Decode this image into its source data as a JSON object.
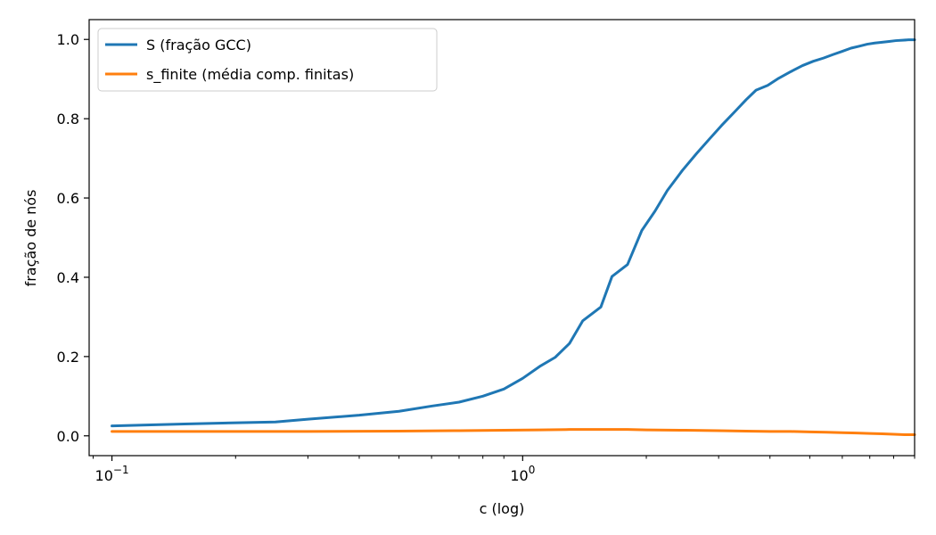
{
  "chart_data": {
    "type": "line",
    "xscale": "log",
    "xlabel": "c (log)",
    "ylabel": "fração de nós",
    "xlim": [
      0.088,
      9.0
    ],
    "ylim": [
      -0.05,
      1.05
    ],
    "grid": false,
    "legend_position": "top-left",
    "x_ticks": [
      {
        "value": 0.1,
        "base": "10",
        "exp": "−1"
      },
      {
        "value": 1.0,
        "base": "10",
        "exp": "0"
      }
    ],
    "y_ticks": [
      {
        "value": 0.0,
        "label": "0.0"
      },
      {
        "value": 0.2,
        "label": "0.2"
      },
      {
        "value": 0.4,
        "label": "0.4"
      },
      {
        "value": 0.6,
        "label": "0.6"
      },
      {
        "value": 0.8,
        "label": "0.8"
      },
      {
        "value": 1.0,
        "label": "1.0"
      }
    ],
    "series": [
      {
        "name": "S (fração GCC)",
        "color": "#1f77b4",
        "points": [
          [
            0.1,
            0.025
          ],
          [
            0.15,
            0.03
          ],
          [
            0.25,
            0.035
          ],
          [
            0.3,
            0.042
          ],
          [
            0.4,
            0.052
          ],
          [
            0.5,
            0.062
          ],
          [
            0.6,
            0.075
          ],
          [
            0.7,
            0.085
          ],
          [
            0.8,
            0.1
          ],
          [
            0.9,
            0.118
          ],
          [
            1.0,
            0.145
          ],
          [
            1.1,
            0.175
          ],
          [
            1.2,
            0.198
          ],
          [
            1.3,
            0.233
          ],
          [
            1.4,
            0.29
          ],
          [
            1.55,
            0.325
          ],
          [
            1.65,
            0.402
          ],
          [
            1.8,
            0.432
          ],
          [
            1.95,
            0.518
          ],
          [
            2.1,
            0.567
          ],
          [
            2.25,
            0.619
          ],
          [
            2.45,
            0.67
          ],
          [
            2.65,
            0.712
          ],
          [
            2.85,
            0.749
          ],
          [
            3.05,
            0.783
          ],
          [
            3.3,
            0.82
          ],
          [
            3.5,
            0.848
          ],
          [
            3.7,
            0.872
          ],
          [
            3.95,
            0.884
          ],
          [
            4.2,
            0.902
          ],
          [
            4.5,
            0.919
          ],
          [
            4.8,
            0.934
          ],
          [
            5.1,
            0.945
          ],
          [
            5.4,
            0.953
          ],
          [
            5.7,
            0.962
          ],
          [
            6.0,
            0.97
          ],
          [
            6.3,
            0.978
          ],
          [
            6.6,
            0.983
          ],
          [
            6.9,
            0.988
          ],
          [
            7.2,
            0.991
          ],
          [
            7.5,
            0.993
          ],
          [
            7.8,
            0.995
          ],
          [
            8.1,
            0.997
          ],
          [
            8.4,
            0.998
          ],
          [
            8.7,
            0.999
          ],
          [
            9.0,
            0.999
          ]
        ]
      },
      {
        "name": "s_finite (média comp. finitas)",
        "color": "#ff7f0e",
        "points": [
          [
            0.1,
            0.011
          ],
          [
            0.2,
            0.011
          ],
          [
            0.3,
            0.011
          ],
          [
            0.5,
            0.012
          ],
          [
            0.7,
            0.013
          ],
          [
            0.9,
            0.014
          ],
          [
            1.1,
            0.015
          ],
          [
            1.3,
            0.016
          ],
          [
            1.5,
            0.016
          ],
          [
            1.8,
            0.016
          ],
          [
            2.0,
            0.015
          ],
          [
            2.5,
            0.014
          ],
          [
            3.0,
            0.013
          ],
          [
            3.5,
            0.012
          ],
          [
            4.0,
            0.011
          ],
          [
            4.5,
            0.011
          ],
          [
            5.0,
            0.01
          ],
          [
            5.5,
            0.009
          ],
          [
            6.0,
            0.008
          ],
          [
            6.5,
            0.007
          ],
          [
            7.0,
            0.006
          ],
          [
            7.5,
            0.005
          ],
          [
            8.0,
            0.004
          ],
          [
            8.5,
            0.003
          ],
          [
            9.0,
            0.003
          ]
        ]
      }
    ]
  }
}
